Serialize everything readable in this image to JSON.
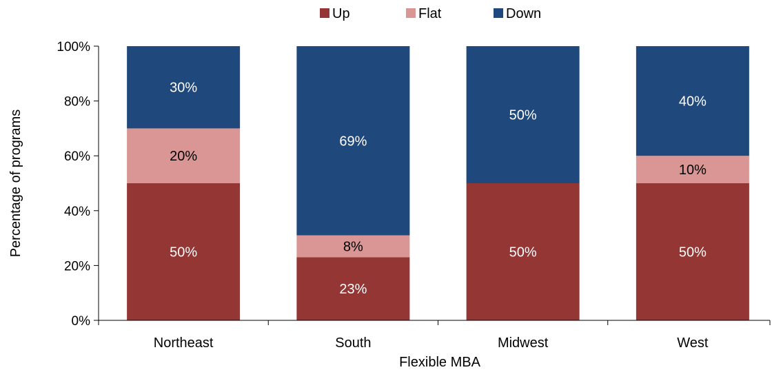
{
  "chart_data": {
    "type": "bar",
    "stacked": true,
    "categories": [
      "Northeast",
      "South",
      "Midwest",
      "West"
    ],
    "series": [
      {
        "name": "Up",
        "values": [
          50,
          23,
          50,
          50
        ],
        "color": "#943634"
      },
      {
        "name": "Flat",
        "values": [
          20,
          8,
          0,
          10
        ],
        "color": "#D99694"
      },
      {
        "name": "Down",
        "values": [
          30,
          69,
          50,
          40
        ],
        "color": "#1F497D"
      }
    ],
    "data_labels": [
      [
        "50%",
        "23%",
        "50%",
        "50%"
      ],
      [
        "20%",
        "8%",
        "",
        "10%"
      ],
      [
        "30%",
        "69%",
        "50%",
        "40%"
      ]
    ],
    "xlabel": "Flexible MBA",
    "ylabel": "Percentage of programs",
    "ylim": [
      0,
      100
    ],
    "yticks": [
      "0%",
      "20%",
      "40%",
      "60%",
      "80%",
      "100%"
    ],
    "legend_position": "top-center",
    "grid": false
  }
}
